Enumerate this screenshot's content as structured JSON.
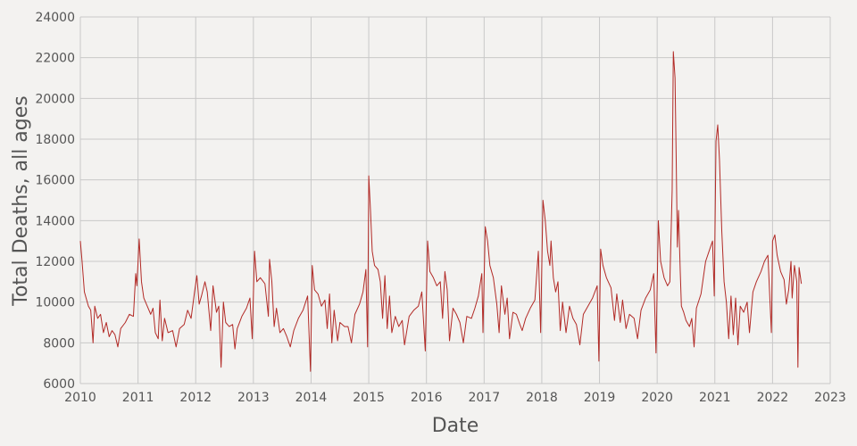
{
  "chart_data": {
    "type": "line",
    "xlabel": "Date",
    "ylabel": "Total Deaths, all ages",
    "color": "#b22a26",
    "grid": true,
    "xlim": [
      2010,
      2023
    ],
    "xticks": [
      2010,
      2011,
      2012,
      2013,
      2014,
      2015,
      2016,
      2017,
      2018,
      2019,
      2020,
      2021,
      2022,
      2023
    ],
    "ylim": [
      6000,
      24000
    ],
    "yticks": [
      6000,
      8000,
      10000,
      12000,
      14000,
      16000,
      18000,
      20000,
      22000,
      24000
    ],
    "x": [
      2010.0,
      2010.03,
      2010.07,
      2010.1,
      2010.14,
      2010.18,
      2010.22,
      2010.25,
      2010.3,
      2010.35,
      2010.4,
      2010.45,
      2010.5,
      2010.55,
      2010.6,
      2010.65,
      2010.7,
      2010.78,
      2010.85,
      2010.92,
      2010.96,
      2010.98,
      2011.02,
      2011.06,
      2011.1,
      2011.16,
      2011.22,
      2011.26,
      2011.3,
      2011.35,
      2011.38,
      2011.42,
      2011.46,
      2011.52,
      2011.6,
      2011.66,
      2011.72,
      2011.8,
      2011.86,
      2011.92,
      2011.98,
      2012.02,
      2012.06,
      2012.1,
      2012.16,
      2012.2,
      2012.26,
      2012.3,
      2012.36,
      2012.4,
      2012.44,
      2012.48,
      2012.52,
      2012.58,
      2012.64,
      2012.68,
      2012.72,
      2012.8,
      2012.88,
      2012.94,
      2012.98,
      2013.02,
      2013.06,
      2013.12,
      2013.2,
      2013.26,
      2013.28,
      2013.32,
      2013.36,
      2013.4,
      2013.46,
      2013.52,
      2013.58,
      2013.64,
      2013.7,
      2013.78,
      2013.86,
      2013.94,
      2013.99,
      2014.02,
      2014.06,
      2014.12,
      2014.18,
      2014.24,
      2014.28,
      2014.32,
      2014.36,
      2014.4,
      2014.46,
      2014.5,
      2014.58,
      2014.64,
      2014.7,
      2014.76,
      2014.84,
      2014.9,
      2014.95,
      2014.98,
      2015.0,
      2015.03,
      2015.06,
      2015.1,
      2015.16,
      2015.2,
      2015.24,
      2015.28,
      2015.32,
      2015.36,
      2015.4,
      2015.46,
      2015.52,
      2015.58,
      2015.62,
      2015.7,
      2015.78,
      2015.86,
      2015.92,
      2015.98,
      2016.02,
      2016.06,
      2016.12,
      2016.18,
      2016.24,
      2016.28,
      2016.32,
      2016.36,
      2016.4,
      2016.46,
      2016.52,
      2016.58,
      2016.64,
      2016.7,
      2016.78,
      2016.84,
      2016.9,
      2016.96,
      2016.98,
      2017.02,
      2017.06,
      2017.1,
      2017.16,
      2017.22,
      2017.26,
      2017.3,
      2017.36,
      2017.4,
      2017.44,
      2017.5,
      2017.56,
      2017.62,
      2017.66,
      2017.72,
      2017.8,
      2017.88,
      2017.94,
      2017.98,
      2018.02,
      2018.06,
      2018.1,
      2018.14,
      2018.16,
      2018.2,
      2018.24,
      2018.28,
      2018.32,
      2018.36,
      2018.42,
      2018.48,
      2018.54,
      2018.6,
      2018.66,
      2018.72,
      2018.8,
      2018.88,
      2018.96,
      2018.99,
      2019.02,
      2019.06,
      2019.12,
      2019.2,
      2019.26,
      2019.3,
      2019.36,
      2019.4,
      2019.46,
      2019.52,
      2019.6,
      2019.66,
      2019.72,
      2019.8,
      2019.88,
      2019.94,
      2019.98,
      2020.02,
      2020.06,
      2020.12,
      2020.18,
      2020.22,
      2020.26,
      2020.28,
      2020.31,
      2020.33,
      2020.35,
      2020.37,
      2020.4,
      2020.42,
      2020.46,
      2020.5,
      2020.56,
      2020.6,
      2020.64,
      2020.68,
      2020.76,
      2020.84,
      2020.9,
      2020.96,
      2020.99,
      2021.02,
      2021.05,
      2021.08,
      2021.12,
      2021.16,
      2021.2,
      2021.24,
      2021.28,
      2021.32,
      2021.36,
      2021.4,
      2021.44,
      2021.5,
      2021.56,
      2021.6,
      2021.66,
      2021.72,
      2021.8,
      2021.86,
      2021.92,
      2021.98,
      2022.0,
      2022.04,
      2022.08,
      2022.14,
      2022.2,
      2022.24,
      2022.28,
      2022.32,
      2022.34,
      2022.38,
      2022.42,
      2022.44,
      2022.46,
      2022.5
    ],
    "values": [
      13000,
      12000,
      10500,
      10200,
      9800,
      9600,
      8000,
      9800,
      9200,
      9400,
      8500,
      9000,
      8300,
      8600,
      8400,
      7800,
      8700,
      9000,
      9400,
      9300,
      11400,
      10800,
      13100,
      11000,
      10200,
      9800,
      9400,
      9700,
      8500,
      8200,
      10100,
      8100,
      9200,
      8500,
      8600,
      7800,
      8700,
      8900,
      9600,
      9200,
      10500,
      11300,
      9900,
      10300,
      11000,
      10500,
      8600,
      10800,
      9500,
      9800,
      6800,
      10000,
      9000,
      8800,
      8900,
      7700,
      8700,
      9300,
      9700,
      10200,
      8200,
      12500,
      11000,
      11200,
      10900,
      9300,
      12100,
      11000,
      8800,
      9700,
      8500,
      8700,
      8300,
      7800,
      8600,
      9200,
      9600,
      10300,
      6600,
      11800,
      10600,
      10400,
      9800,
      10100,
      8700,
      10400,
      8000,
      9600,
      8100,
      9000,
      8800,
      8800,
      8000,
      9400,
      9900,
      10500,
      11600,
      7800,
      16200,
      14500,
      12500,
      11800,
      11600,
      11000,
      9200,
      11300,
      8700,
      10300,
      8500,
      9300,
      8800,
      9100,
      7900,
      9300,
      9600,
      9800,
      10500,
      7600,
      13000,
      11500,
      11200,
      10800,
      11000,
      9200,
      11500,
      10600,
      8100,
      9700,
      9400,
      9000,
      8000,
      9300,
      9200,
      9700,
      10300,
      11400,
      8500,
      13700,
      13000,
      11800,
      11200,
      9900,
      8500,
      10800,
      9400,
      10200,
      8200,
      9500,
      9400,
      8900,
      8600,
      9200,
      9700,
      10100,
      12500,
      8500,
      15000,
      14000,
      12500,
      11800,
      13000,
      11200,
      10500,
      11000,
      8600,
      10000,
      8500,
      9800,
      9200,
      8900,
      7900,
      9400,
      9800,
      10200,
      10800,
      7100,
      12600,
      11800,
      11200,
      10700,
      9100,
      10400,
      9000,
      10100,
      8700,
      9400,
      9200,
      8200,
      9600,
      10200,
      10600,
      11400,
      7500,
      14000,
      12000,
      11200,
      10800,
      11000,
      15500,
      22300,
      21000,
      17000,
      12700,
      14500,
      11500,
      9800,
      9500,
      9100,
      8800,
      9200,
      7800,
      9700,
      10400,
      12000,
      12500,
      13000,
      10300,
      17900,
      18700,
      17000,
      13500,
      11000,
      10000,
      8200,
      10300,
      8400,
      10200,
      7900,
      9800,
      9500,
      10000,
      8500,
      10500,
      11000,
      11500,
      12000,
      12300,
      8500,
      13000,
      13300,
      12300,
      11500,
      11100,
      9900,
      10600,
      12000,
      10200,
      11800,
      11000,
      6800,
      11700,
      10900
    ]
  }
}
